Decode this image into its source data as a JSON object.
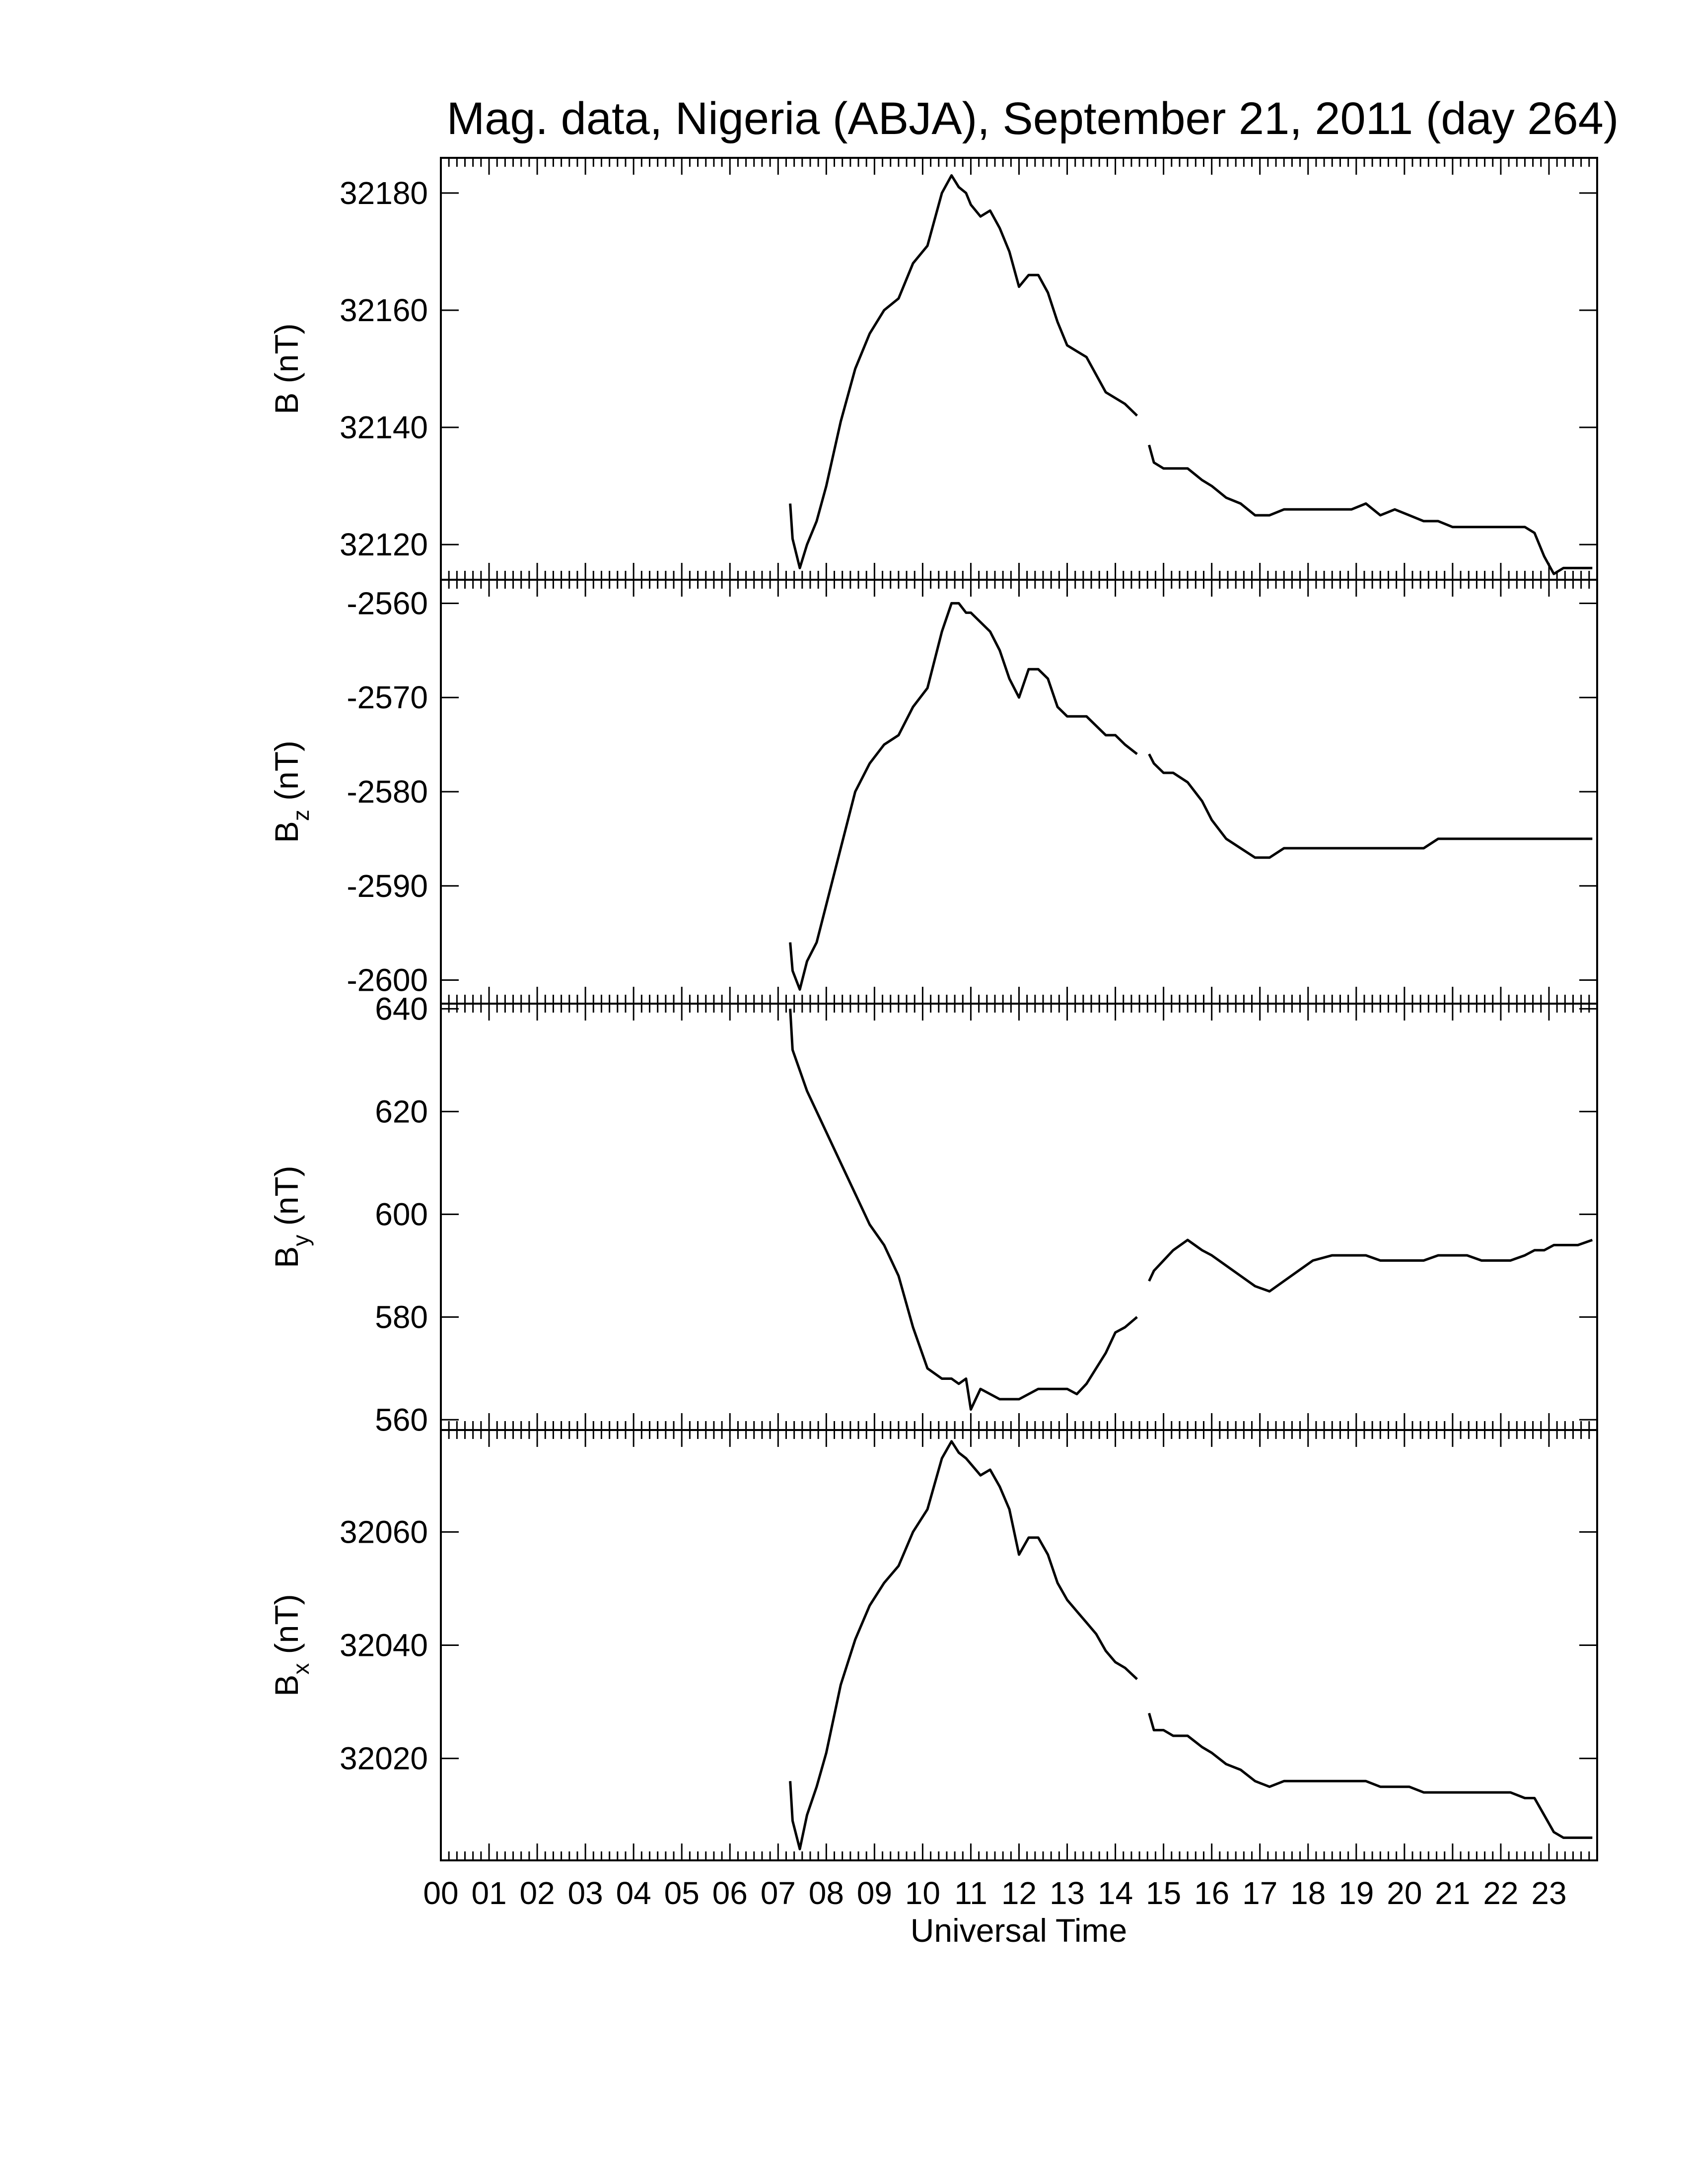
{
  "figure": {
    "title": "Mag. data, Nigeria (ABJA), September 21, 2011 (day 264)",
    "xlabel": "Universal Time",
    "x_tick_labels": [
      "00",
      "01",
      "02",
      "03",
      "04",
      "05",
      "06",
      "07",
      "08",
      "09",
      "10",
      "11",
      "12",
      "13",
      "14",
      "15",
      "16",
      "17",
      "18",
      "19",
      "20",
      "21",
      "22",
      "23"
    ],
    "line_color": "#000000"
  },
  "chart_data": [
    {
      "type": "line",
      "panel": "B",
      "ylabel_main": "B",
      "ylabel_sub": "",
      "ylabel_unit": "(nT)",
      "xlim": [
        0,
        24
      ],
      "ylim": [
        32114,
        32186
      ],
      "yticks": [
        32120,
        32140,
        32160,
        32180
      ],
      "segments": [
        {
          "x": [
            7.25,
            7.3,
            7.45,
            7.6,
            7.8,
            8.0,
            8.3,
            8.6,
            8.9,
            9.2,
            9.5,
            9.8,
            10.1,
            10.4,
            10.6,
            10.75,
            10.9,
            11.0,
            11.2,
            11.4,
            11.6,
            11.8,
            12.0,
            12.2,
            12.4,
            12.6,
            12.8,
            13.0,
            13.2,
            13.4,
            13.6,
            13.8,
            14.0,
            14.2,
            14.45
          ],
          "y": [
            32127,
            32121,
            32116,
            32120,
            32124,
            32130,
            32141,
            32150,
            32156,
            32160,
            32162,
            32168,
            32171,
            32180,
            32183,
            32181,
            32180,
            32178,
            32176,
            32177,
            32174,
            32170,
            32164,
            32166,
            32166,
            32163,
            32158,
            32154,
            32153,
            32152,
            32149,
            32146,
            32145,
            32144,
            32142
          ]
        },
        {
          "x": [
            14.7,
            14.8,
            15.0,
            15.2,
            15.5,
            15.8,
            16.0,
            16.3,
            16.6,
            16.9,
            17.2,
            17.5,
            17.8,
            18.1,
            18.5,
            18.9,
            19.2,
            19.5,
            19.8,
            20.1,
            20.4,
            20.7,
            21.0,
            21.3,
            21.6,
            21.9,
            22.2,
            22.5,
            22.7,
            22.9,
            23.1,
            23.3,
            23.6,
            23.9
          ],
          "y": [
            32137,
            32134,
            32133,
            32133,
            32133,
            32131,
            32130,
            32128,
            32127,
            32125,
            32125,
            32126,
            32126,
            32126,
            32126,
            32126,
            32127,
            32125,
            32126,
            32125,
            32124,
            32124,
            32123,
            32123,
            32123,
            32123,
            32123,
            32123,
            32122,
            32118,
            32115,
            32116,
            32116,
            32116
          ]
        }
      ]
    },
    {
      "type": "line",
      "panel": "Bz",
      "ylabel_main": "B",
      "ylabel_sub": "z",
      "ylabel_unit": "(nT)",
      "xlim": [
        0,
        24
      ],
      "ylim": [
        -2602.5,
        -2557.5
      ],
      "yticks": [
        -2560,
        -2570,
        -2580,
        -2590,
        -2600
      ],
      "segments": [
        {
          "x": [
            7.25,
            7.3,
            7.45,
            7.6,
            7.8,
            8.0,
            8.3,
            8.6,
            8.9,
            9.2,
            9.5,
            9.8,
            10.1,
            10.4,
            10.6,
            10.75,
            10.9,
            11.0,
            11.2,
            11.4,
            11.6,
            11.8,
            12.0,
            12.2,
            12.4,
            12.6,
            12.8,
            13.0,
            13.2,
            13.4,
            13.6,
            13.8,
            14.0,
            14.2,
            14.45
          ],
          "y": [
            -2596,
            -2599,
            -2601,
            -2598,
            -2596,
            -2592,
            -2586,
            -2580,
            -2577,
            -2575,
            -2574,
            -2571,
            -2569,
            -2563,
            -2560,
            -2560,
            -2561,
            -2561,
            -2562,
            -2563,
            -2565,
            -2568,
            -2570,
            -2567,
            -2567,
            -2568,
            -2571,
            -2572,
            -2572,
            -2572,
            -2573,
            -2574,
            -2574,
            -2575,
            -2576
          ]
        },
        {
          "x": [
            14.7,
            14.8,
            15.0,
            15.2,
            15.5,
            15.8,
            16.0,
            16.3,
            16.6,
            16.9,
            17.2,
            17.5,
            17.8,
            18.1,
            18.5,
            18.9,
            19.2,
            19.5,
            19.8,
            20.1,
            20.4,
            20.7,
            21.0,
            21.3,
            21.6,
            21.9,
            22.2,
            22.5,
            22.7,
            22.9,
            23.1,
            23.3,
            23.6,
            23.9
          ],
          "y": [
            -2576,
            -2577,
            -2578,
            -2578,
            -2579,
            -2581,
            -2583,
            -2585,
            -2586,
            -2587,
            -2587,
            -2586,
            -2586,
            -2586,
            -2586,
            -2586,
            -2586,
            -2586,
            -2586,
            -2586,
            -2586,
            -2585,
            -2585,
            -2585,
            -2585,
            -2585,
            -2585,
            -2585,
            -2585,
            -2585,
            -2585,
            -2585,
            -2585,
            -2585
          ]
        }
      ]
    },
    {
      "type": "line",
      "panel": "By",
      "ylabel_main": "B",
      "ylabel_sub": "y",
      "ylabel_unit": "(nT)",
      "xlim": [
        0,
        24
      ],
      "ylim": [
        558,
        641
      ],
      "yticks": [
        560,
        580,
        600,
        620,
        640
      ],
      "segments": [
        {
          "x": [
            7.25,
            7.3,
            7.45,
            7.6,
            7.8,
            8.0,
            8.3,
            8.6,
            8.9,
            9.2,
            9.5,
            9.8,
            10.1,
            10.4,
            10.6,
            10.75,
            10.9,
            11.0,
            11.2,
            11.4,
            11.6,
            11.8,
            12.0,
            12.2,
            12.4,
            12.6,
            12.8,
            13.0,
            13.2,
            13.4,
            13.6,
            13.8,
            14.0,
            14.2,
            14.45
          ],
          "y": [
            640,
            632,
            628,
            624,
            620,
            616,
            610,
            604,
            598,
            594,
            588,
            578,
            570,
            568,
            568,
            567,
            568,
            562,
            566,
            565,
            564,
            564,
            564,
            565,
            566,
            566,
            566,
            566,
            565,
            567,
            570,
            573,
            577,
            578,
            580
          ]
        },
        {
          "x": [
            14.7,
            14.8,
            15.0,
            15.2,
            15.5,
            15.8,
            16.0,
            16.3,
            16.6,
            16.9,
            17.2,
            17.5,
            17.8,
            18.1,
            18.5,
            18.9,
            19.2,
            19.5,
            19.8,
            20.1,
            20.4,
            20.7,
            21.0,
            21.3,
            21.6,
            21.9,
            22.2,
            22.5,
            22.7,
            22.9,
            23.1,
            23.3,
            23.6,
            23.9
          ],
          "y": [
            587,
            589,
            591,
            593,
            595,
            593,
            592,
            590,
            588,
            586,
            585,
            587,
            589,
            591,
            592,
            592,
            592,
            591,
            591,
            591,
            591,
            592,
            592,
            592,
            591,
            591,
            591,
            592,
            593,
            593,
            594,
            594,
            594,
            595
          ]
        }
      ]
    },
    {
      "type": "line",
      "panel": "Bx",
      "ylabel_main": "B",
      "ylabel_sub": "x",
      "ylabel_unit": "(nT)",
      "xlim": [
        0,
        24
      ],
      "ylim": [
        32002,
        32078
      ],
      "yticks": [
        32020,
        32040,
        32060
      ],
      "segments": [
        {
          "x": [
            7.25,
            7.3,
            7.45,
            7.6,
            7.8,
            8.0,
            8.3,
            8.6,
            8.9,
            9.2,
            9.5,
            9.8,
            10.1,
            10.4,
            10.6,
            10.75,
            10.9,
            11.0,
            11.2,
            11.4,
            11.6,
            11.8,
            12.0,
            12.2,
            12.4,
            12.6,
            12.8,
            13.0,
            13.2,
            13.4,
            13.6,
            13.8,
            14.0,
            14.2,
            14.45
          ],
          "y": [
            32016,
            32009,
            32004,
            32010,
            32015,
            32021,
            32033,
            32041,
            32047,
            32051,
            32054,
            32060,
            32064,
            32073,
            32076,
            32074,
            32073,
            32072,
            32070,
            32071,
            32068,
            32064,
            32056,
            32059,
            32059,
            32056,
            32051,
            32048,
            32046,
            32044,
            32042,
            32039,
            32037,
            32036,
            32034
          ]
        },
        {
          "x": [
            14.7,
            14.8,
            15.0,
            15.2,
            15.5,
            15.8,
            16.0,
            16.3,
            16.6,
            16.9,
            17.2,
            17.5,
            17.8,
            18.1,
            18.5,
            18.9,
            19.2,
            19.5,
            19.8,
            20.1,
            20.4,
            20.7,
            21.0,
            21.3,
            21.6,
            21.9,
            22.2,
            22.5,
            22.7,
            22.9,
            23.1,
            23.3,
            23.6,
            23.9
          ],
          "y": [
            32028,
            32025,
            32025,
            32024,
            32024,
            32022,
            32021,
            32019,
            32018,
            32016,
            32015,
            32016,
            32016,
            32016,
            32016,
            32016,
            32016,
            32015,
            32015,
            32015,
            32014,
            32014,
            32014,
            32014,
            32014,
            32014,
            32014,
            32013,
            32013,
            32010,
            32007,
            32006,
            32006,
            32006
          ]
        }
      ]
    }
  ]
}
